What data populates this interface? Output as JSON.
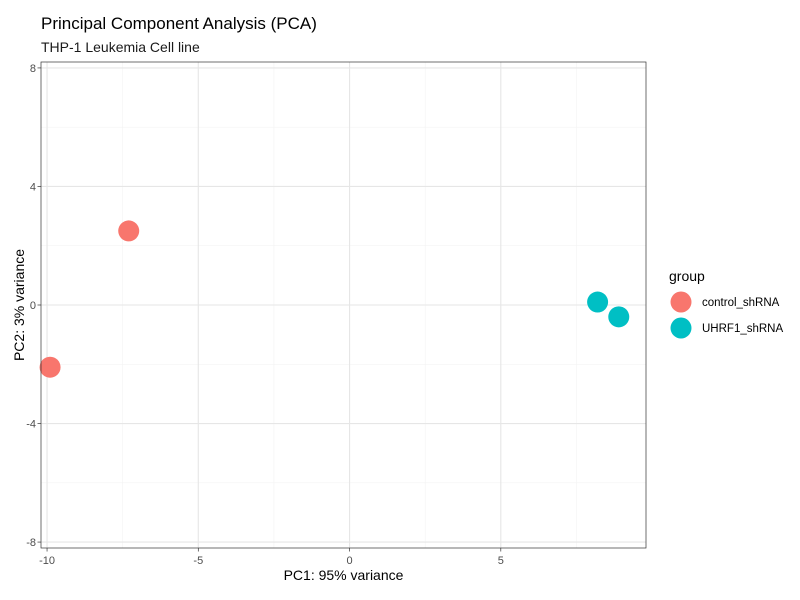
{
  "chart_data": {
    "type": "scatter",
    "title": "Principal Component Analysis (PCA)",
    "subtitle": "THP-1 Leukemia Cell line",
    "xlabel": "PC1: 95% variance",
    "ylabel": "PC2: 3% variance",
    "xlim": [
      -10.2,
      9.8
    ],
    "ylim": [
      -8.2,
      8.2
    ],
    "x_ticks": [
      -10,
      -5,
      0,
      5
    ],
    "x_tick_labels": [
      "-10",
      "-5",
      "0",
      "5"
    ],
    "y_ticks": [
      -8,
      -4,
      0,
      4,
      8
    ],
    "y_tick_labels": [
      "-8",
      "-4",
      "0",
      "4",
      "8"
    ],
    "grid": true,
    "legend": {
      "title": "group",
      "position": "right"
    },
    "series": [
      {
        "name": "control_shRNA",
        "color": "#F8766D",
        "points": [
          {
            "x": -7.3,
            "y": 2.5
          },
          {
            "x": -9.9,
            "y": -2.1
          }
        ]
      },
      {
        "name": "UHRF1_shRNA",
        "color": "#00BFC4",
        "points": [
          {
            "x": 8.2,
            "y": 0.1
          },
          {
            "x": 8.9,
            "y": -0.4
          }
        ]
      }
    ]
  }
}
